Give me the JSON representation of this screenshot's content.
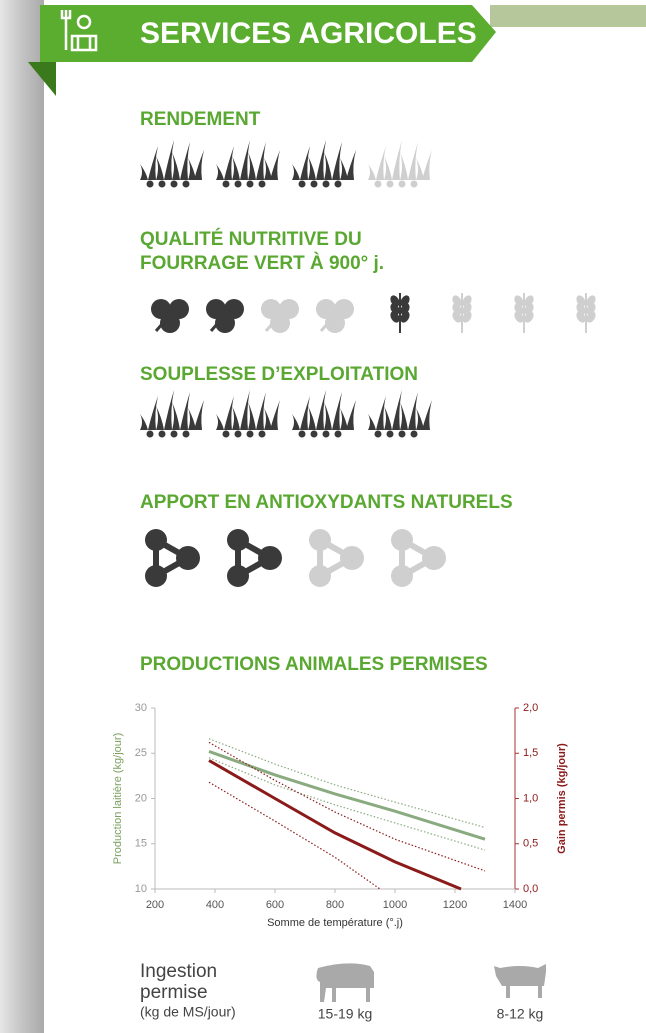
{
  "header": {
    "title": "SERVICES AGRICOLES"
  },
  "ratings": [
    {
      "label_lines": [
        "RENDEMENT"
      ],
      "groups": [
        {
          "icon": "grass",
          "score": 3,
          "max": 4
        }
      ]
    },
    {
      "label_lines": [
        "QUALITÉ NUTRITIVE DU",
        "FOURRAGE VERT À 900° j."
      ],
      "groups": [
        {
          "icon": "clover",
          "score": 2,
          "max": 4
        },
        {
          "icon": "wheat",
          "score": 1,
          "max": 4
        }
      ]
    },
    {
      "label_lines": [
        "SOUPLESSE D’EXPLOITATION"
      ],
      "groups": [
        {
          "icon": "grass",
          "score": 4,
          "max": 4
        }
      ]
    },
    {
      "label_lines": [
        "APPORT EN ANTIOXYDANTS NATURELS"
      ],
      "groups": [
        {
          "icon": "molecule",
          "score": 2,
          "max": 4
        }
      ]
    }
  ],
  "chart_data": {
    "type": "line",
    "title": "PRODUCTIONS ANIMALES PERMISES",
    "xlabel": "Somme de température (°.j)",
    "ylabel": "Production laitière (kg/jour)",
    "y2label": "Gain permis (kg/jour)",
    "xlim": [
      200,
      1400
    ],
    "xticks": [
      200,
      400,
      600,
      800,
      1000,
      1200,
      1400
    ],
    "ylim": [
      10,
      30
    ],
    "yticks": [
      10,
      15,
      20,
      25,
      30
    ],
    "y2lim": [
      0,
      2
    ],
    "y2ticks": [
      {
        "value": 0,
        "label": "0,0"
      },
      {
        "value": 0.5,
        "label": "0,5"
      },
      {
        "value": 1,
        "label": "1,0"
      },
      {
        "value": 1.5,
        "label": "1,5"
      },
      {
        "value": 2,
        "label": "2,0"
      }
    ],
    "series": [
      {
        "color": "#8aaa80",
        "style": "solid",
        "x": [
          380,
          600,
          800,
          1000,
          1300
        ],
        "values": [
          25.2,
          22.6,
          20.5,
          18.6,
          15.5
        ]
      },
      {
        "color": "#8aaa80",
        "style": "dotted",
        "x": [
          380,
          600,
          800,
          1000,
          1300
        ],
        "values": [
          26.6,
          23.8,
          21.5,
          19.6,
          16.8
        ]
      },
      {
        "color": "#8aaa80",
        "style": "dotted",
        "x": [
          380,
          600,
          800,
          1000,
          1300
        ],
        "values": [
          24.5,
          21.5,
          19.3,
          17.3,
          14.3
        ]
      },
      {
        "color": "#8b1a1a",
        "style": "solid",
        "axis": "y2",
        "x": [
          380,
          600,
          800,
          1000,
          1220
        ],
        "values": [
          1.42,
          1.0,
          0.62,
          0.3,
          0.0
        ]
      },
      {
        "color": "#8b1a1a",
        "style": "dotted",
        "axis": "y2",
        "x": [
          380,
          600,
          800,
          1000,
          1300
        ],
        "values": [
          1.62,
          1.2,
          0.85,
          0.55,
          0.2
        ]
      },
      {
        "color": "#8b1a1a",
        "style": "dotted",
        "axis": "y2",
        "x": [
          380,
          600,
          800,
          950
        ],
        "values": [
          1.18,
          0.75,
          0.35,
          0.0
        ]
      }
    ]
  },
  "ingestion": {
    "label_lines": [
      "Ingestion",
      "permise"
    ],
    "unit": "(kg de MS/jour)",
    "amounts": [
      "15-19 kg",
      "8-12 kg"
    ]
  }
}
